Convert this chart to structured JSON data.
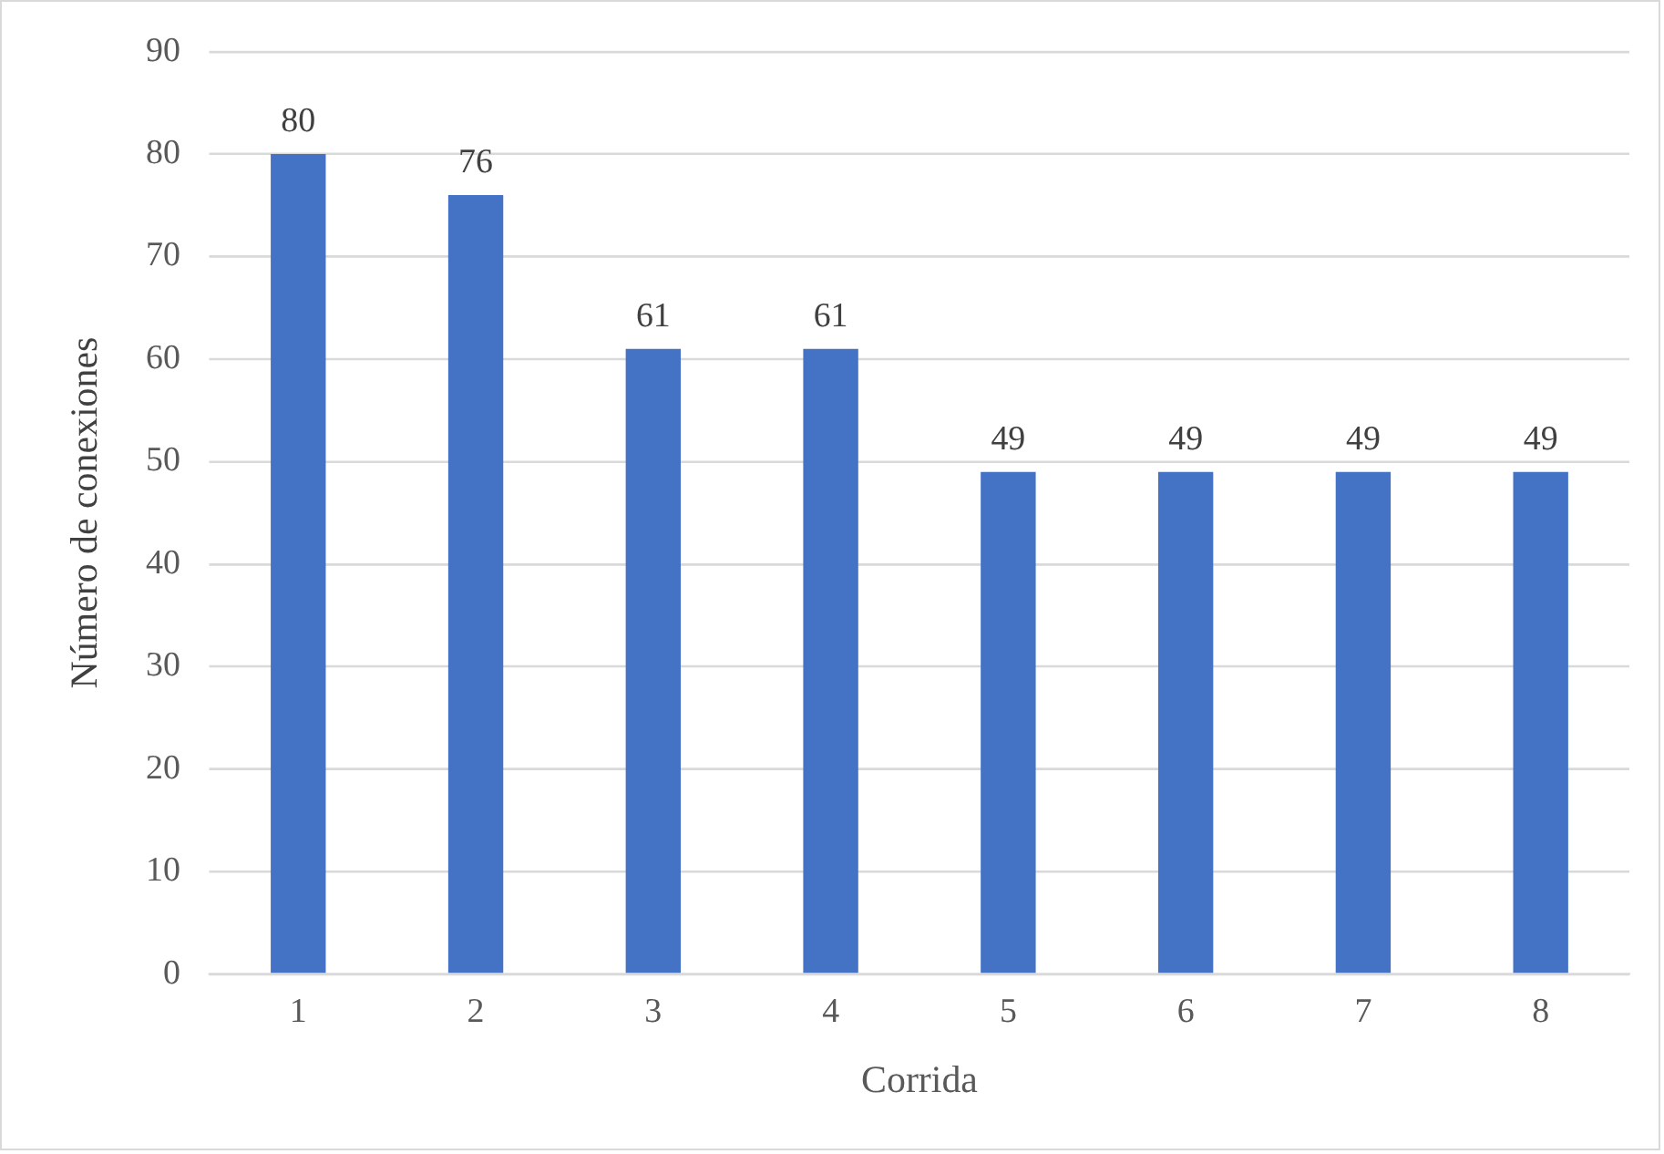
{
  "chart_data": {
    "type": "bar",
    "xlabel": "Corrida",
    "ylabel": "Número de conexiones",
    "categories": [
      "1",
      "2",
      "3",
      "4",
      "5",
      "6",
      "7",
      "8"
    ],
    "values": [
      80,
      76,
      61,
      61,
      49,
      49,
      49,
      49
    ],
    "color": "#4472c4",
    "ylim": [
      0,
      90
    ],
    "yticks": [
      0,
      10,
      20,
      30,
      40,
      50,
      60,
      70,
      80,
      90
    ],
    "grid": "y",
    "data_labels": true,
    "legend": false
  }
}
